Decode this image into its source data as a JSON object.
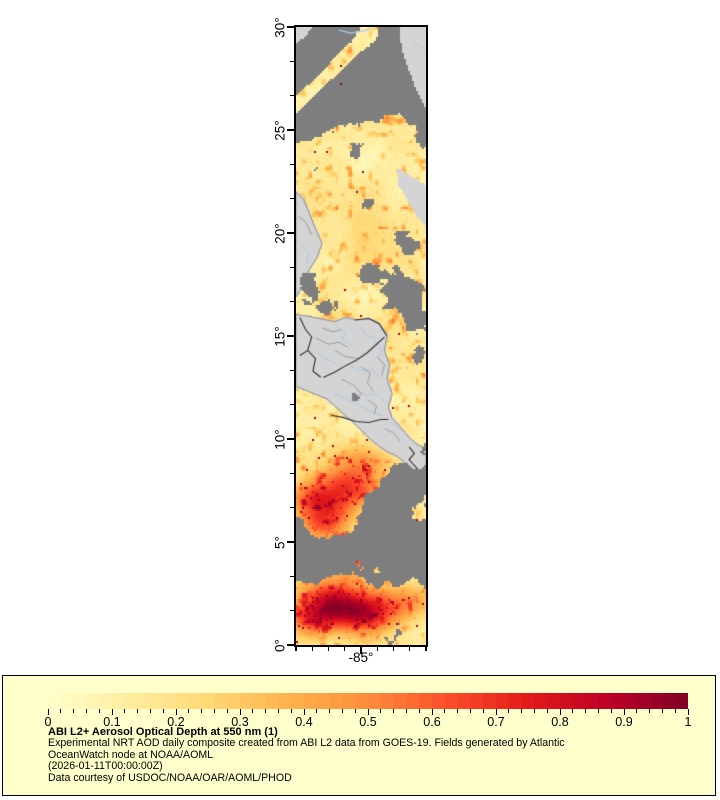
{
  "figure": {
    "map": {
      "x_tick_label": "-85°",
      "y_tick_labels": [
        "0°",
        "5°",
        "10°",
        "15°",
        "20°",
        "25°",
        "30°"
      ]
    },
    "colorbar": {
      "tick_labels": [
        "0",
        "0.1",
        "0.2",
        "0.3",
        "0.4",
        "0.5",
        "0.6",
        "0.7",
        "0.8",
        "0.9",
        "1"
      ],
      "steps": 50,
      "stops": [
        "#ffffcc",
        "#ffeda0",
        "#fed976",
        "#feb24c",
        "#fd8d3c",
        "#fc4e2a",
        "#e31a1c",
        "#bd0026",
        "#800026"
      ]
    },
    "panel": {
      "background": "#ffffcc",
      "title": "ABI L2+ Aerosol Optical Depth at 550 nm (1)",
      "line1": "Experimental NRT AOD daily composite created from ABI L2 data from GOES-19. Fields generated by Atlantic",
      "line2": "OceanWatch node at NOAA/AOML",
      "line3": "(2026-01-11T00:00:00Z)",
      "line4": "Data courtesy of USDOC/NOAA/OAR/AOML/PHOD"
    }
  },
  "chart_data": {
    "type": "heatmap",
    "title": "ABI L2+ Aerosol Optical Depth at 550 nm (1)",
    "subtitle_lines": [
      "Experimental NRT AOD daily composite created from ABI L2 data from GOES-19. Fields generated by Atlantic OceanWatch node at NOAA/AOML",
      "(2026-01-11T00:00:00Z)",
      "Data courtesy of USDOC/NOAA/OAR/AOML/PHOD"
    ],
    "x_axis": {
      "content": "longitude",
      "tick_labels": [
        "-85°"
      ]
    },
    "y_axis": {
      "content": "latitude",
      "tick_labels": [
        "0°",
        "5°",
        "10°",
        "15°",
        "20°",
        "25°",
        "30°"
      ],
      "range_deg": [
        0,
        30
      ]
    },
    "colorbar": {
      "quantity": "Aerosol Optical Depth at 550 nm",
      "range": [
        0,
        1
      ],
      "ticks": [
        0,
        0.1,
        0.2,
        0.3,
        0.4,
        0.5,
        0.6,
        0.7,
        0.8,
        0.9,
        1
      ],
      "palette": "YlOrRd",
      "n_steps": 50,
      "position": "bottom"
    },
    "encoding_notes": [
      "dark gray = cloud / no data",
      "light gray = land base map",
      "yellow-to-dark-red = AOD 0 to 1",
      "high AOD hotspots near 0-7N and 8-10N Pacific"
    ]
  },
  "render": {
    "colors": {
      "cloud": "#7e7e7e",
      "land": "#d4d4d4",
      "coast": "#8f8f8f",
      "border": "#2f2f2f",
      "admin": "#9e9e9e",
      "river": "#a9cbe8",
      "dot": "#8c0a26"
    },
    "land_polys": [
      {
        "over": false,
        "pts": [
          [
            0,
            16.05
          ],
          [
            0.1,
            15.95
          ],
          [
            0.22,
            15.8
          ],
          [
            0.3,
            15.7
          ],
          [
            0.38,
            15.9
          ],
          [
            0.47,
            15.78
          ],
          [
            0.56,
            15.85
          ],
          [
            0.64,
            15.6
          ],
          [
            0.7,
            15.0
          ],
          [
            0.68,
            14.3
          ],
          [
            0.72,
            13.6
          ],
          [
            0.7,
            12.9
          ],
          [
            0.74,
            12.2
          ],
          [
            0.71,
            11.55
          ],
          [
            0.74,
            11.0
          ],
          [
            0.8,
            10.6
          ],
          [
            0.87,
            10.05
          ],
          [
            0.94,
            9.7
          ],
          [
            1,
            9.55
          ],
          [
            1,
            8.1
          ],
          [
            0.93,
            8.35
          ],
          [
            0.86,
            8.75
          ],
          [
            0.78,
            9.15
          ],
          [
            0.7,
            9.4
          ],
          [
            0.64,
            9.65
          ],
          [
            0.57,
            10.0
          ],
          [
            0.5,
            10.45
          ],
          [
            0.44,
            10.8
          ],
          [
            0.36,
            11.25
          ],
          [
            0.3,
            11.6
          ],
          [
            0.24,
            11.95
          ],
          [
            0.16,
            12.15
          ],
          [
            0.08,
            12.35
          ],
          [
            0,
            12.55
          ]
        ]
      },
      {
        "over": false,
        "pts": [
          [
            0,
            22.0
          ],
          [
            0.06,
            21.6
          ],
          [
            0.1,
            21.0
          ],
          [
            0.15,
            20.2
          ],
          [
            0.2,
            19.5
          ],
          [
            0.16,
            18.8
          ],
          [
            0.1,
            18.2
          ],
          [
            0.05,
            17.4
          ],
          [
            0,
            16.9
          ]
        ]
      },
      {
        "over": true,
        "pts": [
          [
            0.78,
            23.1
          ],
          [
            0.88,
            22.7
          ],
          [
            0.96,
            22.4
          ],
          [
            1,
            22.25
          ],
          [
            1,
            20.4
          ],
          [
            0.93,
            20.9
          ],
          [
            0.87,
            21.6
          ],
          [
            0.8,
            22.3
          ]
        ]
      },
      {
        "over": true,
        "pts": [
          [
            0.8,
            30
          ],
          [
            1,
            30
          ],
          [
            1,
            26.2
          ],
          [
            0.94,
            26.9
          ],
          [
            0.88,
            27.9
          ],
          [
            0.82,
            29.0
          ]
        ]
      },
      {
        "over": true,
        "pts": [
          [
            0,
            30
          ],
          [
            0.12,
            30
          ],
          [
            0.05,
            29.5
          ],
          [
            0,
            29.3
          ]
        ]
      }
    ],
    "cloud_bands": [
      [
        0,
        0.085,
        1,
        0.045,
        0.075,
        1.1
      ],
      [
        0,
        0.165,
        0.45,
        0.1,
        0.028,
        0.55
      ],
      [
        0,
        0.125,
        0.62,
        0.002,
        0.016,
        -1.6
      ],
      [
        0,
        0.862,
        1,
        0.845,
        0.052,
        1.0
      ],
      [
        0.55,
        0.775,
        1,
        0.72,
        0.042,
        0.75
      ]
    ],
    "cloud_blobs": [
      [
        0.08,
        0.42,
        0.1,
        0.03,
        0.55
      ],
      [
        0.3,
        0.455,
        0.12,
        0.022,
        0.5
      ],
      [
        0.55,
        0.4,
        0.08,
        0.02,
        0.45
      ],
      [
        0.8,
        0.43,
        0.16,
        0.03,
        0.6
      ],
      [
        0.92,
        0.47,
        0.1,
        0.022,
        0.5
      ],
      [
        0.87,
        0.345,
        0.1,
        0.025,
        0.5
      ],
      [
        0.55,
        0.285,
        0.05,
        0.012,
        0.35
      ],
      [
        0.95,
        0.53,
        0.08,
        0.018,
        0.45
      ],
      [
        0.02,
        0.8,
        0.07,
        0.03,
        0.6
      ],
      [
        0.15,
        0.97,
        0.12,
        0.03,
        0.5
      ],
      [
        0.75,
        0.965,
        0.18,
        0.03,
        0.55
      ],
      [
        0.45,
        0.6,
        0.04,
        0.012,
        0.35
      ],
      [
        1.0,
        0.155,
        0.07,
        0.05,
        0.5
      ],
      [
        0.45,
        0.955,
        0.3,
        0.025,
        0.45
      ]
    ],
    "hotspots": [
      [
        0.42,
        0.745,
        0.28,
        0.035,
        0.6
      ],
      [
        0.22,
        0.8,
        0.25,
        0.035,
        0.5
      ],
      [
        0.5,
        0.7,
        0.2,
        0.03,
        0.35
      ],
      [
        0.14,
        0.765,
        0.18,
        0.03,
        0.35
      ],
      [
        0.47,
        0.862,
        0.18,
        0.022,
        0.55
      ],
      [
        0.3,
        0.925,
        0.3,
        0.035,
        0.7
      ],
      [
        0.52,
        0.955,
        0.25,
        0.03,
        0.6
      ],
      [
        0.14,
        0.96,
        0.2,
        0.028,
        0.5
      ],
      [
        0.85,
        0.93,
        0.25,
        0.03,
        0.4
      ],
      [
        0.93,
        0.7,
        0.08,
        0.012,
        0.45
      ],
      [
        0.55,
        0.33,
        0.7,
        0.06,
        0.1
      ],
      [
        0.3,
        0.52,
        0.5,
        0.05,
        0.08
      ],
      [
        0.3,
        0.06,
        0.5,
        0.04,
        0.05
      ]
    ],
    "borders": [
      [
        [
          0.21,
          12.98
        ],
        [
          0.3,
          13.25
        ],
        [
          0.38,
          13.55
        ],
        [
          0.47,
          13.85
        ],
        [
          0.55,
          14.2
        ],
        [
          0.62,
          14.6
        ],
        [
          0.68,
          14.95
        ]
      ],
      [
        [
          0.27,
          11.15
        ],
        [
          0.36,
          11.05
        ],
        [
          0.46,
          10.85
        ],
        [
          0.56,
          10.8
        ],
        [
          0.65,
          10.95
        ],
        [
          0.71,
          10.95
        ]
      ],
      [
        [
          0.87,
          9.62
        ],
        [
          0.91,
          9.3
        ],
        [
          0.87,
          9.0
        ],
        [
          0.94,
          8.5
        ]
      ],
      [
        [
          0.03,
          15.9
        ],
        [
          0.07,
          15.35
        ],
        [
          0.12,
          14.95
        ],
        [
          0.09,
          14.3
        ],
        [
          0.03,
          14.05
        ]
      ],
      [
        [
          0.09,
          14.3
        ],
        [
          0.15,
          13.9
        ],
        [
          0.13,
          13.3
        ],
        [
          0.19,
          13.0
        ]
      ],
      [
        [
          0.45,
          15.78
        ],
        [
          0.56,
          15.85
        ],
        [
          0.64,
          15.6
        ],
        [
          0.7,
          15.0
        ]
      ]
    ],
    "admin_lines": [
      [
        [
          0.15,
          14.9
        ],
        [
          0.25,
          14.6
        ],
        [
          0.33,
          14.7
        ],
        [
          0.4,
          14.45
        ]
      ],
      [
        [
          0.3,
          14.3
        ],
        [
          0.38,
          14.0
        ],
        [
          0.48,
          13.9
        ]
      ],
      [
        [
          0.5,
          13.5
        ],
        [
          0.57,
          13.2
        ],
        [
          0.55,
          12.7
        ],
        [
          0.6,
          12.3
        ]
      ],
      [
        [
          0.35,
          12.9
        ],
        [
          0.45,
          12.6
        ],
        [
          0.5,
          12.2
        ],
        [
          0.45,
          11.8
        ]
      ],
      [
        [
          0.55,
          11.9
        ],
        [
          0.62,
          11.6
        ],
        [
          0.6,
          11.2
        ]
      ],
      [
        [
          0.68,
          10.5
        ],
        [
          0.75,
          10.3
        ],
        [
          0.8,
          9.9
        ]
      ],
      [
        [
          0.2,
          15.4
        ],
        [
          0.28,
          15.2
        ],
        [
          0.35,
          15.3
        ]
      ],
      [
        [
          0.62,
          14.0
        ],
        [
          0.68,
          13.6
        ],
        [
          0.66,
          13.1
        ]
      ],
      [
        [
          0.02,
          20.8
        ],
        [
          0.08,
          20.5
        ],
        [
          0.12,
          19.9
        ]
      ]
    ],
    "rivers": [
      [
        [
          0.3,
          15.5
        ],
        [
          0.38,
          15.2
        ],
        [
          0.36,
          14.8
        ],
        [
          0.44,
          14.5
        ]
      ],
      [
        [
          0.5,
          15.4
        ],
        [
          0.55,
          15.0
        ],
        [
          0.62,
          14.9
        ]
      ],
      [
        [
          0.6,
          14.8
        ],
        [
          0.66,
          14.4
        ],
        [
          0.64,
          13.9
        ],
        [
          0.7,
          13.5
        ]
      ],
      [
        [
          0.4,
          13.6
        ],
        [
          0.5,
          13.3
        ],
        [
          0.58,
          13.4
        ],
        [
          0.64,
          13.0
        ],
        [
          0.7,
          12.9
        ]
      ],
      [
        [
          0.45,
          12.4
        ],
        [
          0.55,
          12.1
        ],
        [
          0.62,
          12.2
        ],
        [
          0.68,
          11.8
        ]
      ],
      [
        [
          0.3,
          12.2
        ],
        [
          0.4,
          11.9
        ],
        [
          0.5,
          11.6
        ],
        [
          0.58,
          11.3
        ],
        [
          0.68,
          11.1
        ]
      ],
      [
        [
          0.72,
          10.8
        ],
        [
          0.8,
          10.5
        ],
        [
          0.85,
          10.2
        ]
      ],
      [
        [
          0.15,
          14.3
        ],
        [
          0.22,
          13.9
        ],
        [
          0.3,
          13.7
        ]
      ],
      [
        [
          0.04,
          19.4
        ],
        [
          0.1,
          19.0
        ],
        [
          0.08,
          18.5
        ]
      ],
      [
        [
          0.9,
          29.3
        ],
        [
          0.97,
          29.0
        ],
        [
          1.0,
          28.8
        ]
      ]
    ],
    "rivers_above": [
      [
        [
          0.33,
          29.85
        ],
        [
          0.42,
          29.7
        ],
        [
          0.52,
          29.8
        ],
        [
          0.58,
          29.95
        ]
      ]
    ],
    "seed": 7
  }
}
